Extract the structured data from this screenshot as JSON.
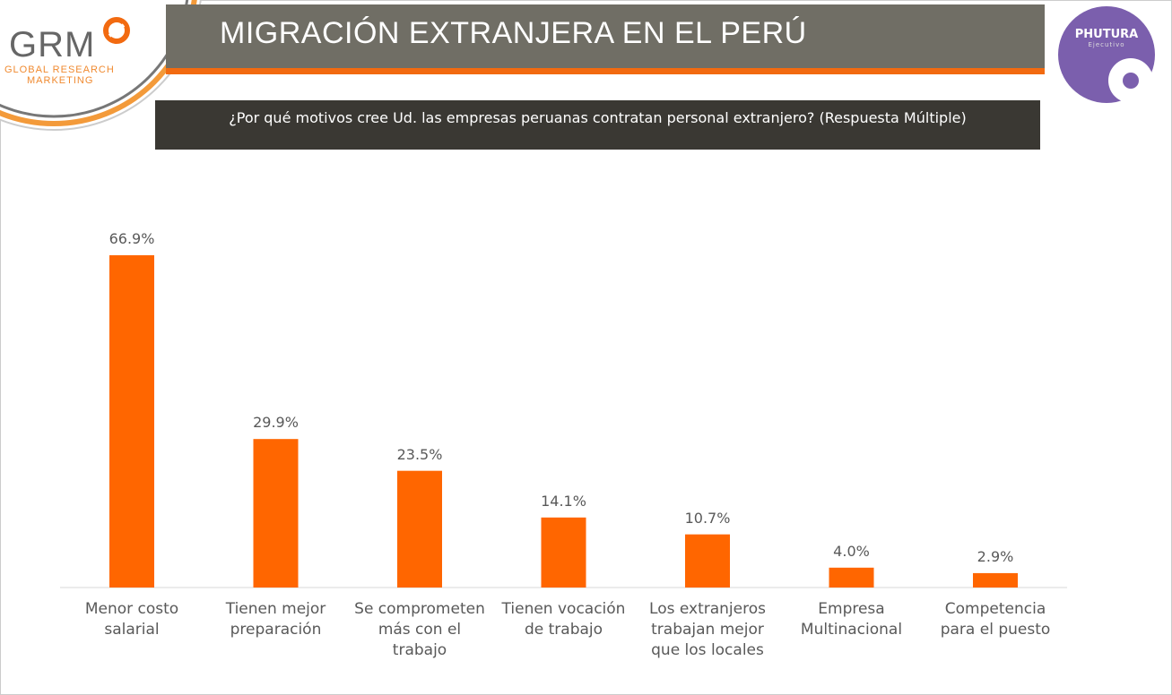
{
  "header": {
    "title": "MIGRACIÓN EXTRANJERA EN EL PERÚ",
    "question": "¿Por qué motivos cree Ud. las empresas peruanas contratan personal extranjero? (Respuesta Múltiple)"
  },
  "logos": {
    "grm": "GRM",
    "grm_sub1": "GLOBAL RESEARCH",
    "grm_sub2": "MARKETING",
    "phutura": "PHUTURA",
    "phutura_sub": "Ejecutivo"
  },
  "colors": {
    "bar": "#ff6600",
    "header": "#706e65",
    "accent": "#f26a10",
    "question_bg": "#3a3833",
    "phutura": "#7b5fad"
  },
  "chart_data": {
    "type": "bar",
    "categories": [
      "Menor costo salarial",
      "Tienen mejor preparación",
      "Se comprometen más con el trabajo",
      "Tienen vocación de trabajo",
      "Los extranjeros trabajan mejor que los locales",
      "Empresa Multinacional",
      "Competencia para el puesto"
    ],
    "category_lines": [
      [
        "Menor costo",
        "salarial"
      ],
      [
        "Tienen mejor",
        "preparación"
      ],
      [
        "Se comprometen",
        "más con el",
        "trabajo"
      ],
      [
        "Tienen vocación",
        "de trabajo"
      ],
      [
        "Los extranjeros",
        "trabajan mejor",
        "que los locales"
      ],
      [
        "Empresa",
        "Multinacional"
      ],
      [
        "Competencia",
        "para el puesto"
      ]
    ],
    "values": [
      66.9,
      29.9,
      23.5,
      14.1,
      10.7,
      4.0,
      2.9
    ],
    "data_labels": [
      "66.9%",
      "29.9%",
      "23.5%",
      "14.1%",
      "10.7%",
      "4.0%",
      "2.9%"
    ],
    "unit": "%",
    "ylim": [
      0,
      70
    ],
    "grid": false,
    "legend": "none"
  }
}
